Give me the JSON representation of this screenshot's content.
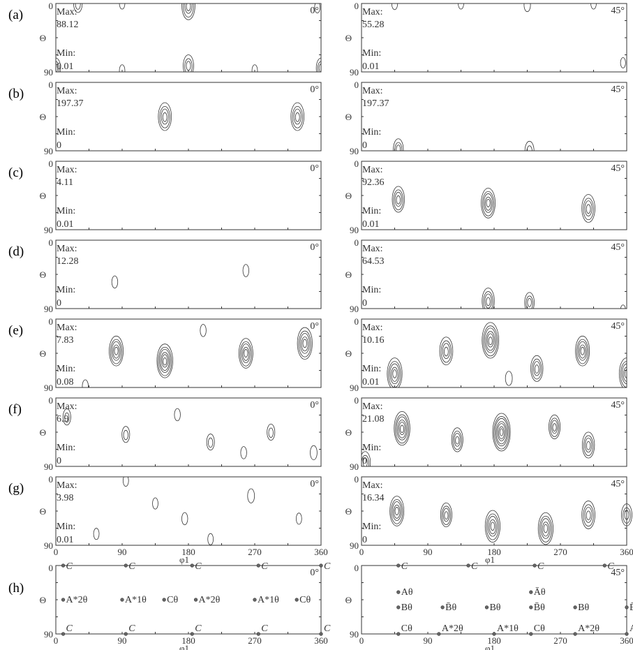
{
  "figure": {
    "axis_labels": {
      "x": "φ1",
      "y": "Θ",
      "y_top": "0",
      "y_bottom": "90"
    },
    "x_ticks": [
      "0",
      "90",
      "180",
      "270",
      "360"
    ],
    "panel_row_labels": [
      "(a)",
      "(b)",
      "(c)",
      "(d)",
      "(e)",
      "(f)",
      "(g)",
      "(h)"
    ],
    "section_labels": {
      "left": "0°",
      "right": "45°"
    },
    "max_label": "Max:",
    "min_label": "Min:"
  },
  "chart_data": {
    "type": "contour",
    "x_range": [
      0,
      360
    ],
    "y_range": [
      0,
      90
    ],
    "y_axis_reversed": true,
    "panels": [
      {
        "row": "(a)",
        "section": "0°",
        "max": "88.12",
        "min": "0.01",
        "peaks": [
          [
            30,
            0,
            1.0
          ],
          [
            90,
            0,
            0.3
          ],
          [
            180,
            3,
            2.0
          ],
          [
            355,
            5,
            0.3
          ],
          [
            0,
            85,
            1.2
          ],
          [
            90,
            88,
            0.3
          ],
          [
            180,
            82,
            1.4
          ],
          [
            270,
            88,
            0.3
          ],
          [
            360,
            85,
            1.2
          ]
        ]
      },
      {
        "row": "(a)",
        "section": "45°",
        "max": "55.28",
        "min": "0.01",
        "peaks": [
          [
            45,
            0,
            0.4
          ],
          [
            135,
            0,
            0.3
          ],
          [
            225,
            2,
            0.5
          ],
          [
            315,
            0,
            0.3
          ],
          [
            355,
            78,
            0.2
          ]
        ]
      },
      {
        "row": "(b)",
        "section": "0°",
        "max": "197.37",
        "min": "0",
        "peaks": [
          [
            148,
            45,
            2.0
          ],
          [
            328,
            45,
            2.0
          ]
        ]
      },
      {
        "row": "(b)",
        "section": "45°",
        "max": "197.37",
        "min": "0",
        "peaks": [
          [
            50,
            88,
            1.3
          ],
          [
            228,
            90,
            1.1
          ]
        ]
      },
      {
        "row": "(c)",
        "section": "0°",
        "max": "4.11",
        "min": "0.01",
        "peaks": []
      },
      {
        "row": "(c)",
        "section": "45°",
        "max": "92.36",
        "min": "0.01",
        "peaks": [
          [
            50,
            50,
            1.8
          ],
          [
            172,
            55,
            2.2
          ],
          [
            308,
            62,
            2.0
          ]
        ]
      },
      {
        "row": "(d)",
        "section": "0°",
        "max": "12.28",
        "min": "0",
        "peaks": [
          [
            80,
            55,
            0.4
          ],
          [
            258,
            40,
            0.4
          ]
        ]
      },
      {
        "row": "(d)",
        "section": "45°",
        "max": "64.53",
        "min": "0",
        "peaks": [
          [
            172,
            80,
            1.8
          ],
          [
            228,
            82,
            1.2
          ],
          [
            355,
            92,
            0.2
          ]
        ]
      },
      {
        "row": "(e)",
        "section": "0°",
        "max": "7.83",
        "min": "0.08",
        "peaks": [
          [
            82,
            42,
            2.2
          ],
          [
            148,
            55,
            2.6
          ],
          [
            258,
            45,
            2.2
          ],
          [
            338,
            32,
            2.4
          ],
          [
            200,
            15,
            0.4
          ],
          [
            40,
            88,
            0.4
          ]
        ]
      },
      {
        "row": "(e)",
        "section": "45°",
        "max": "10.16",
        "min": "0.01",
        "peaks": [
          [
            45,
            72,
            2.4
          ],
          [
            115,
            42,
            2.0
          ],
          [
            175,
            28,
            2.8
          ],
          [
            238,
            65,
            1.8
          ],
          [
            300,
            42,
            2.2
          ],
          [
            360,
            72,
            2.4
          ],
          [
            200,
            78,
            0.6
          ]
        ]
      },
      {
        "row": "(f)",
        "section": "0°",
        "max": "6.9",
        "min": "0",
        "peaks": [
          [
            15,
            25,
            0.8
          ],
          [
            95,
            48,
            0.8
          ],
          [
            165,
            22,
            0.4
          ],
          [
            210,
            58,
            0.8
          ],
          [
            292,
            45,
            0.8
          ],
          [
            350,
            72,
            0.6
          ],
          [
            255,
            72,
            0.4
          ]
        ]
      },
      {
        "row": "(f)",
        "section": "45°",
        "max": "21.08",
        "min": "0",
        "peaks": [
          [
            55,
            40,
            2.6
          ],
          [
            130,
            55,
            1.6
          ],
          [
            190,
            45,
            3.0
          ],
          [
            262,
            38,
            1.6
          ],
          [
            308,
            62,
            1.8
          ],
          [
            5,
            85,
            1.4
          ]
        ]
      },
      {
        "row": "(g)",
        "section": "0°",
        "max": "3.98",
        "min": "0.01",
        "peaks": [
          [
            95,
            5,
            0.3
          ],
          [
            175,
            55,
            0.4
          ],
          [
            265,
            25,
            0.6
          ],
          [
            135,
            35,
            0.3
          ],
          [
            330,
            55,
            0.3
          ],
          [
            55,
            75,
            0.3
          ],
          [
            210,
            82,
            0.3
          ]
        ]
      },
      {
        "row": "(g)",
        "section": "45°",
        "max": "16.34",
        "min": "0",
        "peaks": [
          [
            48,
            45,
            2.2
          ],
          [
            115,
            50,
            1.6
          ],
          [
            178,
            65,
            2.4
          ],
          [
            250,
            68,
            2.4
          ],
          [
            308,
            50,
            2.0
          ],
          [
            360,
            50,
            1.4
          ]
        ]
      }
    ],
    "ideal_orientations": {
      "section_0": [
        {
          "x": 10,
          "y": 0,
          "label": "C"
        },
        {
          "x": 95,
          "y": 0,
          "label": "C"
        },
        {
          "x": 185,
          "y": 0,
          "label": "C"
        },
        {
          "x": 275,
          "y": 0,
          "label": "C"
        },
        {
          "x": 360,
          "y": 0,
          "label": "C"
        },
        {
          "x": 10,
          "y": 45,
          "label": "A*2θ"
        },
        {
          "x": 90,
          "y": 45,
          "label": "A*1θ"
        },
        {
          "x": 147,
          "y": 45,
          "label": "Cθ"
        },
        {
          "x": 190,
          "y": 45,
          "label": "A*2θ"
        },
        {
          "x": 270,
          "y": 45,
          "label": "A*1θ"
        },
        {
          "x": 327,
          "y": 45,
          "label": "Cθ"
        },
        {
          "x": 10,
          "y": 90,
          "label": "C"
        },
        {
          "x": 95,
          "y": 90,
          "label": "C"
        },
        {
          "x": 185,
          "y": 90,
          "label": "C"
        },
        {
          "x": 275,
          "y": 90,
          "label": "C"
        },
        {
          "x": 360,
          "y": 90,
          "label": "C"
        }
      ],
      "section_45": [
        {
          "x": 50,
          "y": 0,
          "label": "C"
        },
        {
          "x": 145,
          "y": 0,
          "label": "C"
        },
        {
          "x": 235,
          "y": 0,
          "label": "C"
        },
        {
          "x": 330,
          "y": 0,
          "label": "C"
        },
        {
          "x": 50,
          "y": 35,
          "label": "Aθ"
        },
        {
          "x": 230,
          "y": 35,
          "label": "Āθ"
        },
        {
          "x": 50,
          "y": 55,
          "label": "Bθ"
        },
        {
          "x": 110,
          "y": 55,
          "label": "B̄θ"
        },
        {
          "x": 170,
          "y": 55,
          "label": "Bθ"
        },
        {
          "x": 230,
          "y": 55,
          "label": "B̄θ"
        },
        {
          "x": 290,
          "y": 55,
          "label": "Bθ"
        },
        {
          "x": 360,
          "y": 55,
          "label": "B̄θ"
        },
        {
          "x": 50,
          "y": 90,
          "label": "Cθ"
        },
        {
          "x": 105,
          "y": 90,
          "label": "A*2θ"
        },
        {
          "x": 180,
          "y": 90,
          "label": "A*1θ"
        },
        {
          "x": 230,
          "y": 90,
          "label": "Cθ"
        },
        {
          "x": 290,
          "y": 90,
          "label": "A*2θ"
        },
        {
          "x": 360,
          "y": 90,
          "label": "A*1θ"
        }
      ]
    }
  }
}
